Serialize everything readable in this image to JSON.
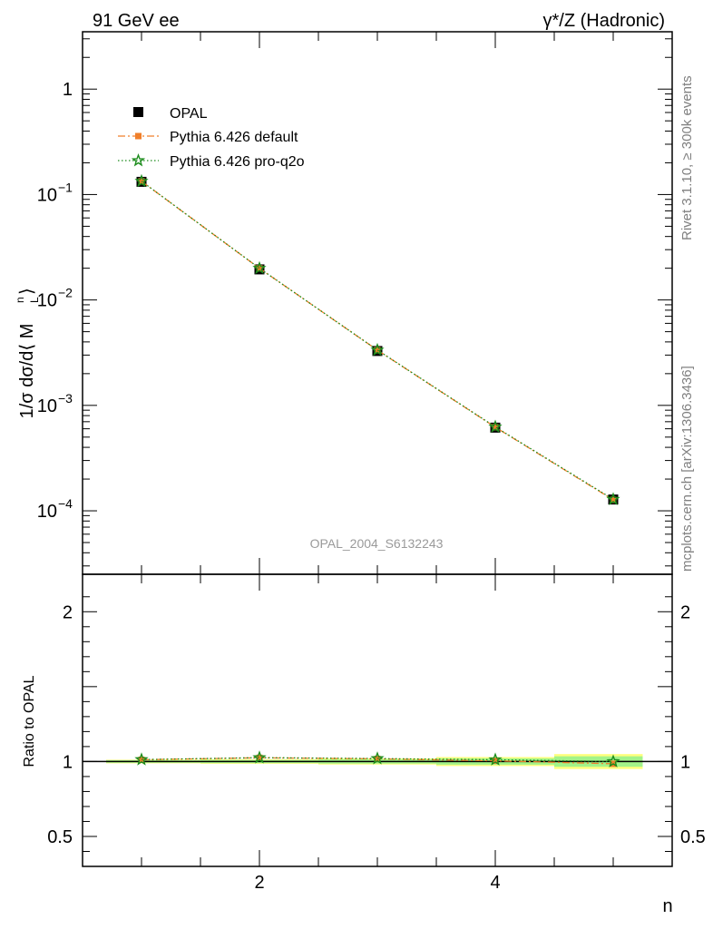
{
  "header": {
    "left_label": "91 GeV ee",
    "right_label": "γ*/Z (Hadronic)"
  },
  "side_labels": {
    "rivet": "Rivet 3.1.10, ≥ 300k events",
    "mcplots": "mcplots.cern.ch [arXiv:1306.3436]"
  },
  "analysis_id": "OPAL_2004_S6132243",
  "chart_data": [
    {
      "type": "line",
      "panel": "main",
      "ylabel": "1/σ dσ/d⟨ M_L^n ⟩",
      "xlabel": "n",
      "xlim": [
        0.5,
        5.5
      ],
      "ylim": [
        2.5e-05,
        3.5
      ],
      "yscale": "log",
      "y_ticks": [
        {
          "value": 1,
          "base": "1",
          "exp": ""
        },
        {
          "value": 0.1,
          "base": "10",
          "exp": "−1"
        },
        {
          "value": 0.01,
          "base": "10",
          "exp": "−2"
        },
        {
          "value": 0.001,
          "base": "10",
          "exp": "−3"
        },
        {
          "value": 0.0001,
          "base": "10",
          "exp": "−4"
        }
      ],
      "legend_position": "top-left",
      "x": [
        1,
        2,
        3,
        4,
        5
      ],
      "series": [
        {
          "name": "OPAL",
          "style": "data",
          "color": "#000000",
          "values": [
            0.132,
            0.0195,
            0.00328,
            0.000615,
            0.000128
          ]
        },
        {
          "name": "Pythia 6.426 default",
          "style": "dashdot",
          "color": "#f07f2a",
          "values": [
            0.1336,
            0.01995,
            0.003345,
            0.000621,
            0.000127
          ]
        },
        {
          "name": "Pythia 6.426 pro-q2o",
          "style": "dotted",
          "color": "#1c8c1c",
          "values": [
            0.1337,
            0.01998,
            0.00335,
            0.000625,
            0.0001285
          ]
        }
      ]
    },
    {
      "type": "line",
      "panel": "ratio",
      "ylabel": "Ratio to OPAL",
      "xlabel": "n",
      "xlim": [
        0.5,
        5.5
      ],
      "ylim": [
        0.3,
        2.25
      ],
      "x_ticks": [
        "2",
        "4"
      ],
      "y_ticks": [
        "2",
        "1",
        "0.5"
      ],
      "x": [
        1,
        2,
        3,
        4,
        5
      ],
      "series": [
        {
          "name": "Pythia 6.426 default",
          "color": "#f07f2a",
          "values": [
            1.012,
            1.025,
            1.018,
            1.005,
            0.985
          ]
        },
        {
          "name": "Pythia 6.426 pro-q2o",
          "color": "#1c8c1c",
          "values": [
            1.013,
            1.026,
            1.02,
            1.012,
            1.0
          ]
        }
      ],
      "band_halfwidth": [
        0.012,
        0.015,
        0.02,
        0.03,
        0.05
      ]
    }
  ]
}
